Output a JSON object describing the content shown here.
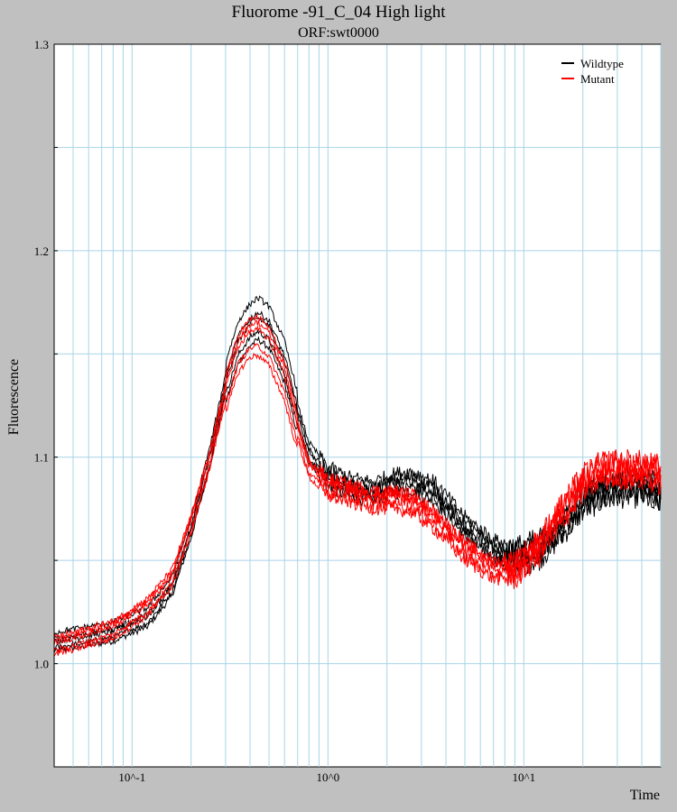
{
  "chart_data": {
    "type": "line",
    "title": "Fluorome -91_C_04 High light",
    "subtitle": "ORF:swt0000",
    "xlabel": "Time",
    "ylabel": "Fluorescence",
    "xscale": "log",
    "xlim": [
      0.04,
      50
    ],
    "ylim": [
      0.95,
      1.3
    ],
    "x_tick_labels": [
      "10^-1",
      "10^0",
      "10^1"
    ],
    "y_tick_labels": [
      "1.0",
      "1.1",
      "1.2",
      "1.3"
    ],
    "grid": true,
    "legend_position": "top-right",
    "series": [
      {
        "name": "Wildtype",
        "color": "#000000",
        "replicates": 5,
        "x": [
          0.04,
          0.08,
          0.12,
          0.16,
          0.2,
          0.25,
          0.3,
          0.35,
          0.4,
          0.44,
          0.5,
          0.6,
          0.7,
          0.8,
          1.0,
          1.3,
          1.7,
          2.2,
          2.7,
          3.5,
          5.0,
          7.0,
          9.0,
          12.0,
          16.0,
          20.0,
          25.0,
          30.0,
          40.0,
          50.0
        ],
        "y": [
          1.01,
          1.015,
          1.022,
          1.037,
          1.065,
          1.1,
          1.135,
          1.155,
          1.163,
          1.166,
          1.162,
          1.145,
          1.12,
          1.102,
          1.09,
          1.085,
          1.083,
          1.087,
          1.088,
          1.083,
          1.066,
          1.055,
          1.051,
          1.055,
          1.067,
          1.078,
          1.083,
          1.085,
          1.085,
          1.082
        ]
      },
      {
        "name": "Mutant",
        "color": "#ff0000",
        "replicates": 5,
        "x": [
          0.04,
          0.08,
          0.12,
          0.16,
          0.2,
          0.25,
          0.3,
          0.35,
          0.4,
          0.44,
          0.5,
          0.6,
          0.7,
          0.8,
          1.0,
          1.3,
          1.7,
          2.2,
          2.7,
          3.5,
          5.0,
          7.0,
          9.0,
          12.0,
          16.0,
          20.0,
          25.0,
          30.0,
          40.0,
          50.0
        ],
        "y": [
          1.009,
          1.017,
          1.028,
          1.042,
          1.068,
          1.1,
          1.132,
          1.152,
          1.159,
          1.16,
          1.155,
          1.138,
          1.113,
          1.095,
          1.086,
          1.083,
          1.08,
          1.08,
          1.078,
          1.07,
          1.055,
          1.046,
          1.046,
          1.057,
          1.075,
          1.088,
          1.094,
          1.095,
          1.094,
          1.092
        ]
      }
    ]
  }
}
